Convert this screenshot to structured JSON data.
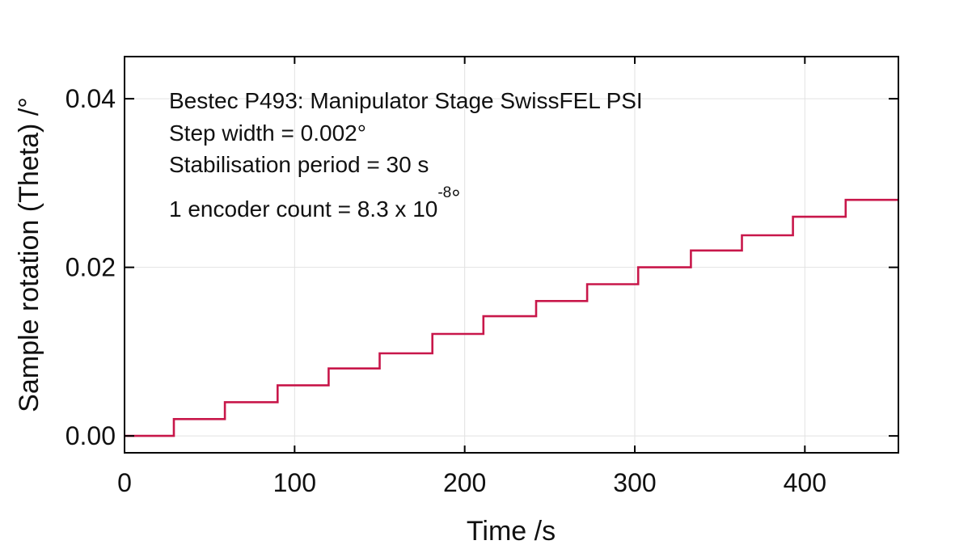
{
  "chart_data": {
    "type": "line",
    "title": "",
    "xlabel": "Time /s",
    "ylabel": "Sample rotation (Theta) /°",
    "xlim": [
      0,
      455
    ],
    "ylim": [
      -0.002,
      0.045
    ],
    "x_ticks": [
      0,
      100,
      200,
      300,
      400
    ],
    "x_tick_labels": [
      "0",
      "100",
      "200",
      "300",
      "400"
    ],
    "y_ticks": [
      0,
      0.02,
      0.04
    ],
    "y_tick_labels": [
      "0.00",
      "0.02",
      "0.04"
    ],
    "grid": true,
    "series": [
      {
        "color": "#c8174a",
        "x": [
          0,
          29,
          29,
          59,
          59,
          90,
          90,
          120,
          120,
          150,
          150,
          181,
          181,
          211,
          211,
          242,
          242,
          272,
          272,
          302,
          302,
          333,
          333,
          363,
          363,
          393,
          393,
          424,
          424,
          455
        ],
        "y": [
          0.0,
          0.0,
          0.002,
          0.002,
          0.004,
          0.004,
          0.006,
          0.006,
          0.008,
          0.008,
          0.0098,
          0.0098,
          0.0121,
          0.0121,
          0.0142,
          0.0142,
          0.016,
          0.016,
          0.018,
          0.018,
          0.02,
          0.02,
          0.022,
          0.022,
          0.0238,
          0.0238,
          0.026,
          0.026,
          0.028,
          0.028
        ]
      }
    ],
    "annotations": {
      "line1": "Bestec P493: Manipulator Stage SwissFEL PSI",
      "line2": "Step width = 0.002°",
      "line3": "Stabilisation period = 30 s",
      "line4_main": "1 encoder count = 8.3 x 10",
      "line4_exp": "-8",
      "line4_unit": "°"
    }
  }
}
